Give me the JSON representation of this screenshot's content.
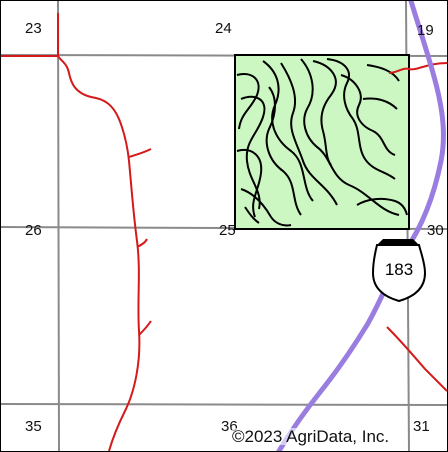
{
  "map": {
    "sections": {
      "s23": "23",
      "s24": "24",
      "s19": "19",
      "s26": "26",
      "s25": "25",
      "s30": "30",
      "s35": "35",
      "s36": "36",
      "s31": "31"
    },
    "highway_shield": "183",
    "copyright": "©2023 AgriData, Inc.",
    "colors": {
      "field_fill": "#ccf7c2",
      "field_border": "#000000",
      "road": "#d41a1a",
      "highway": "#9a7de0",
      "section_line": "#8a8a8a"
    }
  }
}
